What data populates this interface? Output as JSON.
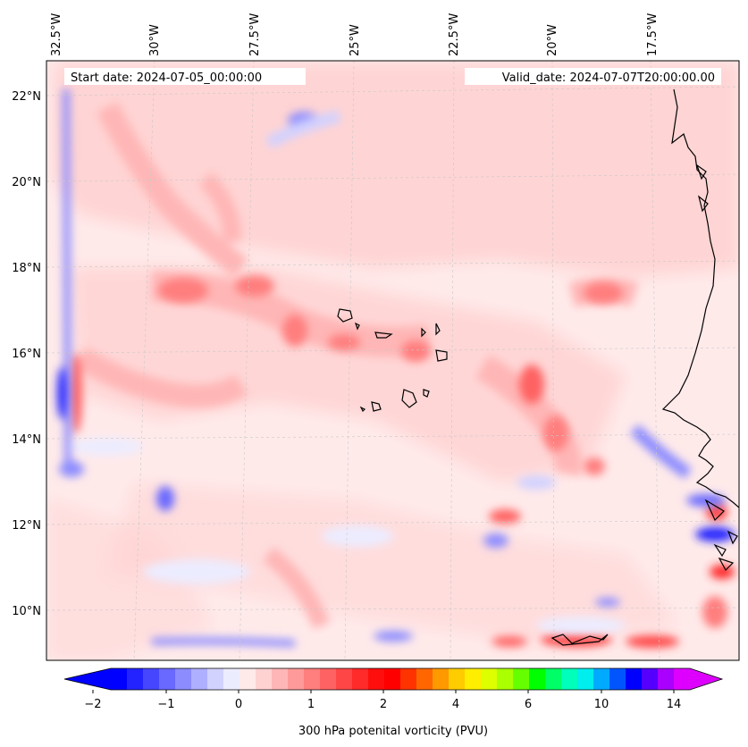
{
  "map": {
    "top_longitude_labels": [
      "32.5°W",
      "30°W",
      "27.5°W",
      "25°W",
      "22.5°W",
      "20°W",
      "17.5°W"
    ],
    "left_latitude_labels": [
      "22°N",
      "20°N",
      "18°N",
      "16°N",
      "14°N",
      "12°N",
      "10°N"
    ],
    "start_date_text": "Start date: 2024-07-05_00:00:00",
    "valid_date_text": "Valid_date: 2024-07-07T20:00:00.00"
  },
  "colorbar": {
    "tick_labels": [
      "−2",
      "−1",
      "0",
      "1",
      "2",
      "4",
      "6",
      "10",
      "14"
    ],
    "label": "300 hPa potenital vorticity (PVU)",
    "colors": [
      "#0000ff",
      "#2323ff",
      "#4646ff",
      "#6969ff",
      "#8c8cff",
      "#afafff",
      "#d2d2ff",
      "#ececff",
      "#ffeaea",
      "#ffd2d2",
      "#ffb6b6",
      "#ff9a9a",
      "#ff7e7e",
      "#ff6262",
      "#ff4646",
      "#ff2a2a",
      "#ff0e0e",
      "#ff0000",
      "#ff3300",
      "#ff6600",
      "#ff9900",
      "#ffcc00",
      "#ffee00",
      "#ddff00",
      "#aaff00",
      "#66ff00",
      "#00ff00",
      "#00ff66",
      "#00ffbb",
      "#00eeee",
      "#00aaff",
      "#0055ff",
      "#0000ff",
      "#5500ff",
      "#aa00ff",
      "#dd00ff"
    ],
    "under_color": "#0000ff",
    "over_color": "#dd00ff"
  },
  "style": {
    "background_pink": "#ffeaea",
    "light_pink": "#ffd2d2",
    "medium_pink": "#ffb6b6",
    "red_core": "#ff7e7e",
    "deep_red": "#ff4646",
    "light_blue": "#ececff",
    "medium_blue": "#d2d2ff",
    "blue": "#8c8cff",
    "deep_blue": "#2323ff",
    "coast": "#000000",
    "grid": "#c8c8c8"
  }
}
